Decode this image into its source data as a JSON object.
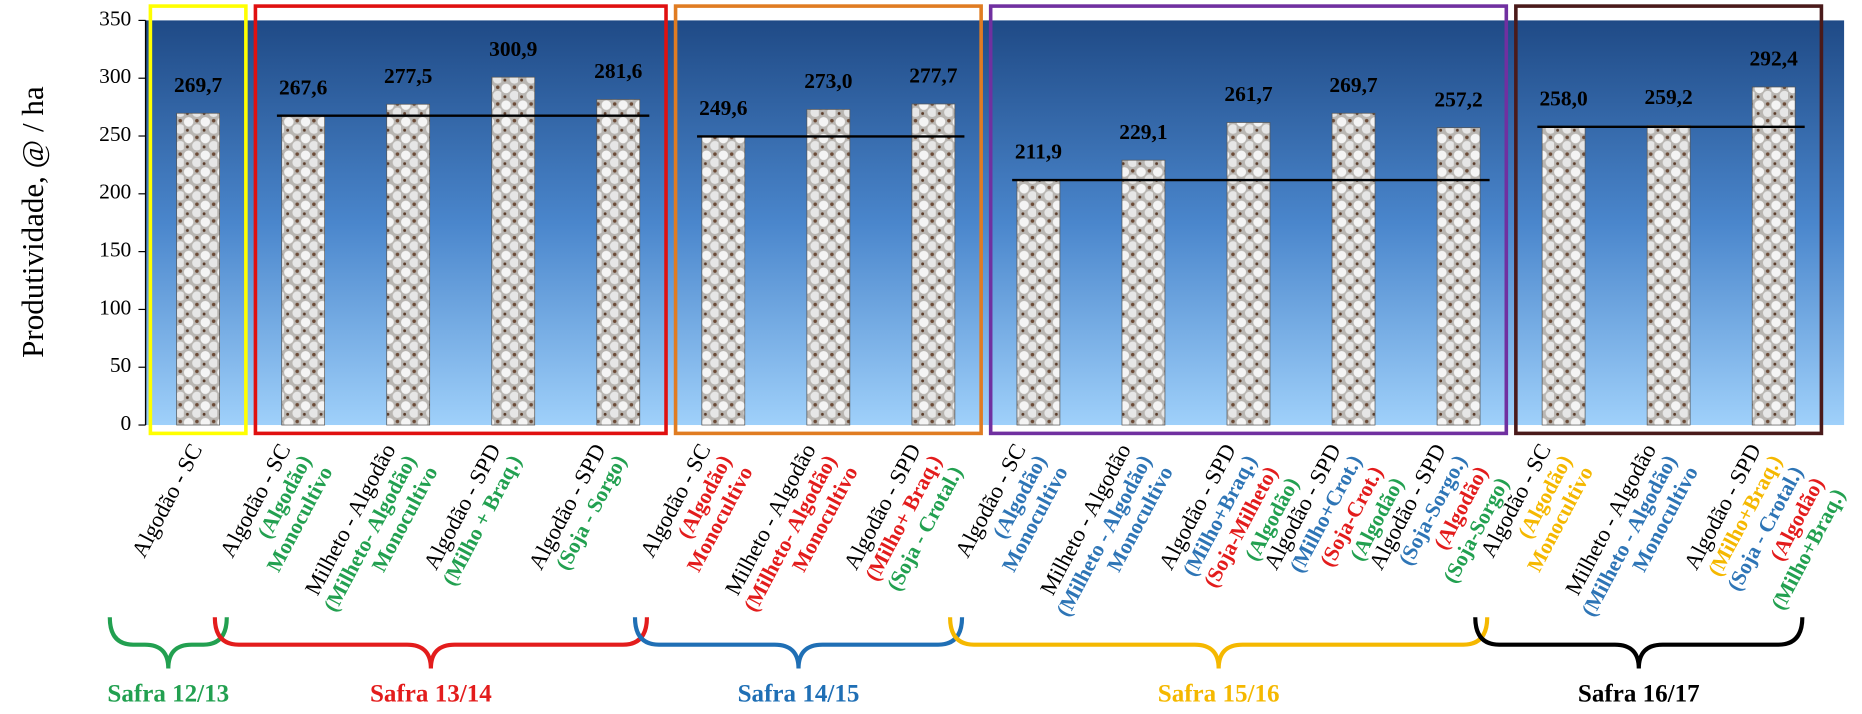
{
  "chart_data": {
    "type": "bar",
    "y_label": "Produtividade, @ / ha",
    "ylim": [
      0,
      350
    ],
    "yticks": [
      0,
      50,
      100,
      150,
      200,
      250,
      300,
      350
    ],
    "groups": [
      {
        "name": "Safra 12/13",
        "color": "#22a050",
        "box_color": "#ffff00",
        "reference_line": false,
        "bars": [
          {
            "label": "Algodão - SC",
            "notes": [],
            "value": 269.7,
            "value_label": "269,7"
          }
        ]
      },
      {
        "name": "Safra 13/14",
        "color": "#e31c1c",
        "box_color": "#e01010",
        "reference_line": true,
        "bars": [
          {
            "label": "Algodão - SC",
            "notes": [
              {
                "text": "(Algodão)",
                "color": "#22a050"
              },
              {
                "text": "Monocultivo",
                "color": "#22a050"
              }
            ],
            "value": 267.6,
            "value_label": "267,6"
          },
          {
            "label": "Milheto - Algodão",
            "notes": [
              {
                "text": "(Milheto- Algodão)",
                "color": "#22a050"
              },
              {
                "text": "Monocultivo",
                "color": "#22a050"
              }
            ],
            "value": 277.5,
            "value_label": "277,5"
          },
          {
            "label": "Algodão - SPD",
            "notes": [
              {
                "text": "(Milho + Braq.)",
                "color": "#22a050"
              }
            ],
            "value": 300.9,
            "value_label": "300,9"
          },
          {
            "label": "Algodão - SPD",
            "notes": [
              {
                "text": "(Soja - Sorgo)",
                "color": "#22a050"
              }
            ],
            "value": 281.6,
            "value_label": "281,6"
          }
        ]
      },
      {
        "name": "Safra 14/15",
        "color": "#1f6fb5",
        "box_color": "#e07c22",
        "reference_line": true,
        "bars": [
          {
            "label": "Algodão - SC",
            "notes": [
              {
                "text": "(Algodão)",
                "color": "#e31c1c"
              },
              {
                "text": "Monocultivo",
                "color": "#e31c1c"
              }
            ],
            "value": 249.6,
            "value_label": "249,6"
          },
          {
            "label": "Milheto - Algodão",
            "notes": [
              {
                "text": "(Milheto- Algodão)",
                "color": "#e31c1c"
              },
              {
                "text": "Monocultivo",
                "color": "#e31c1c"
              }
            ],
            "value": 273.0,
            "value_label": "273,0"
          },
          {
            "label": "Algodão - SPD",
            "notes": [
              {
                "text": "(Milho+ Braq.)",
                "color": "#e31c1c"
              },
              {
                "text": "(Soja - Crotal.)",
                "color": "#22a050"
              }
            ],
            "value": 277.7,
            "value_label": "277,7"
          }
        ]
      },
      {
        "name": "Safra 15/16",
        "color": "#f5b800",
        "box_color": "#7030a0",
        "reference_line": true,
        "bars": [
          {
            "label": "Algodão - SC",
            "notes": [
              {
                "text": "(Algodão)",
                "color": "#2e75b6"
              },
              {
                "text": "Monocultivo",
                "color": "#2e75b6"
              }
            ],
            "value": 211.9,
            "value_label": "211,9"
          },
          {
            "label": "Milheto - Algodão",
            "notes": [
              {
                "text": "(Milheto - Algodão)",
                "color": "#2e75b6"
              },
              {
                "text": "Monocultivo",
                "color": "#2e75b6"
              }
            ],
            "value": 229.1,
            "value_label": "229,1"
          },
          {
            "label": "Algodão - SPD",
            "notes": [
              {
                "text": "(Milho+Braq.)",
                "color": "#2e75b6"
              },
              {
                "text": "(Soja-Milheto)",
                "color": "#e31c1c"
              },
              {
                "text": "(Algodão)",
                "color": "#22a050"
              }
            ],
            "value": 261.7,
            "value_label": "261,7"
          },
          {
            "label": "Algodão - SPD",
            "notes": [
              {
                "text": "(Milho+Crot.)",
                "color": "#2e75b6"
              },
              {
                "text": "(Soja-Crot.)",
                "color": "#e31c1c"
              },
              {
                "text": "(Algodão)",
                "color": "#22a050"
              }
            ],
            "value": 269.7,
            "value_label": "269,7"
          },
          {
            "label": "Algodão - SPD",
            "notes": [
              {
                "text": "(Soja-Sorgo.)",
                "color": "#2e75b6"
              },
              {
                "text": "(Algodão)",
                "color": "#e31c1c"
              },
              {
                "text": "(Soja-Sorgo)",
                "color": "#22a050"
              }
            ],
            "value": 257.2,
            "value_label": "257,2"
          }
        ]
      },
      {
        "name": "Safra 16/17",
        "color": "#000000",
        "box_color": "#4a1a1a",
        "reference_line": true,
        "bars": [
          {
            "label": "Algodão - SC",
            "notes": [
              {
                "text": "(Algodão)",
                "color": "#f5b800"
              },
              {
                "text": "Monocultivo",
                "color": "#f5b800"
              }
            ],
            "value": 258.0,
            "value_label": "258,0"
          },
          {
            "label": "Milheto - Algodão",
            "notes": [
              {
                "text": "(Milheto - Algodão)",
                "color": "#2e75b6"
              },
              {
                "text": "Monocultivo",
                "color": "#2e75b6"
              }
            ],
            "value": 259.2,
            "value_label": "259,2"
          },
          {
            "label": "Algodão - SPD",
            "notes": [
              {
                "text": "(Milho+Braq.)",
                "color": "#f5b800"
              },
              {
                "text": "(Soja - Crotal.)",
                "color": "#2e75b6"
              },
              {
                "text": "(Algodão)",
                "color": "#e31c1c"
              },
              {
                "text": "(Milho+Braq.)",
                "color": "#22a050"
              }
            ],
            "value": 292.4,
            "value_label": "292,4"
          }
        ]
      }
    ]
  }
}
